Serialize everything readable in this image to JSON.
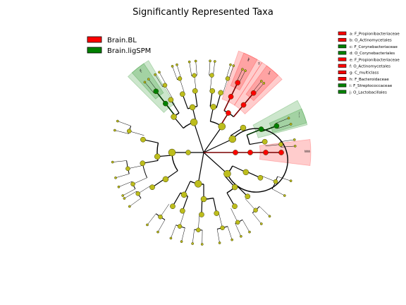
{
  "chart_data": {
    "type": "cladogram",
    "title": "Significantly Represented Taxa",
    "groups": [
      {
        "name": "Brain.BL",
        "color": "#ff0000"
      },
      {
        "name": "Brain.ligSPM",
        "color": "#008000"
      }
    ],
    "highlighted_taxa": [
      {
        "letter": "a",
        "label": "a: F_Propionibacteriaceae",
        "group": "Brain.BL",
        "depth": 5
      },
      {
        "letter": "b",
        "label": "b: O_Actinomycetales",
        "group": "Brain.BL",
        "depth": 4
      },
      {
        "letter": "c",
        "label": "c: F_Corynebacteriaceae",
        "group": "Brain.ligSPM",
        "depth": 5
      },
      {
        "letter": "d",
        "label": "d: O_Corynebacteriales",
        "group": "Brain.ligSPM",
        "depth": 4
      },
      {
        "letter": "e",
        "label": "e: F_Propionibacteriaceae",
        "group": "Brain.BL",
        "depth": 5
      },
      {
        "letter": "f",
        "label": "f: O_Actinomycetales",
        "group": "Brain.BL",
        "depth": 4
      },
      {
        "letter": "g",
        "label": "g: C_multiclass",
        "group": "Brain.BL",
        "depth": 3
      },
      {
        "letter": "h",
        "label": "h: F_Bacteroidaceae",
        "group": "Brain.BL",
        "depth": 5
      },
      {
        "letter": "i",
        "label": "i: F_Streptococcaceae",
        "group": "Brain.ligSPM",
        "depth": 5
      },
      {
        "letter": "j",
        "label": "j: O_Lactobacillales",
        "group": "Brain.ligSPM",
        "depth": 4
      }
    ],
    "legend_placement": "top-left",
    "key_placement": "top-right"
  }
}
